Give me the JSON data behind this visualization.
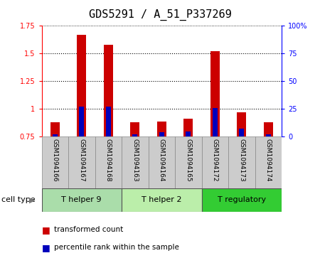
{
  "title": "GDS5291 / A_51_P337269",
  "samples": [
    "GSM1094166",
    "GSM1094167",
    "GSM1094168",
    "GSM1094163",
    "GSM1094164",
    "GSM1094165",
    "GSM1094172",
    "GSM1094173",
    "GSM1094174"
  ],
  "transformed_counts": [
    0.88,
    1.67,
    1.58,
    0.88,
    0.89,
    0.91,
    1.52,
    0.97,
    0.88
  ],
  "percentile_ranks": [
    2,
    27,
    27,
    2,
    4,
    5,
    26,
    7,
    2
  ],
  "ylim_left": [
    0.75,
    1.75
  ],
  "ylim_right": [
    0,
    100
  ],
  "yticks_left": [
    0.75,
    1.0,
    1.25,
    1.5,
    1.75
  ],
  "yticks_right": [
    0,
    25,
    50,
    75,
    100
  ],
  "ytick_labels_left": [
    "0.75",
    "1",
    "1.25",
    "1.5",
    "1.75"
  ],
  "ytick_labels_right": [
    "0",
    "25",
    "50",
    "75",
    "100%"
  ],
  "grid_lines": [
    1.0,
    1.25,
    1.5
  ],
  "cell_types": [
    {
      "label": "T helper 9",
      "start": 0,
      "end": 3,
      "color": "#aaddaa"
    },
    {
      "label": "T helper 2",
      "start": 3,
      "end": 6,
      "color": "#bbeeaa"
    },
    {
      "label": "T regulatory",
      "start": 6,
      "end": 9,
      "color": "#33cc33"
    }
  ],
  "bar_color_red": "#cc0000",
  "bar_color_blue": "#0000bb",
  "background_plot": "#ffffff",
  "tick_bg": "#cccccc",
  "cell_type_label": "cell type",
  "legend_red": "transformed count",
  "legend_blue": "percentile rank within the sample",
  "bar_width": 0.35,
  "base_value": 0.75,
  "title_fontsize": 11,
  "tick_fontsize": 7,
  "label_fontsize": 8
}
